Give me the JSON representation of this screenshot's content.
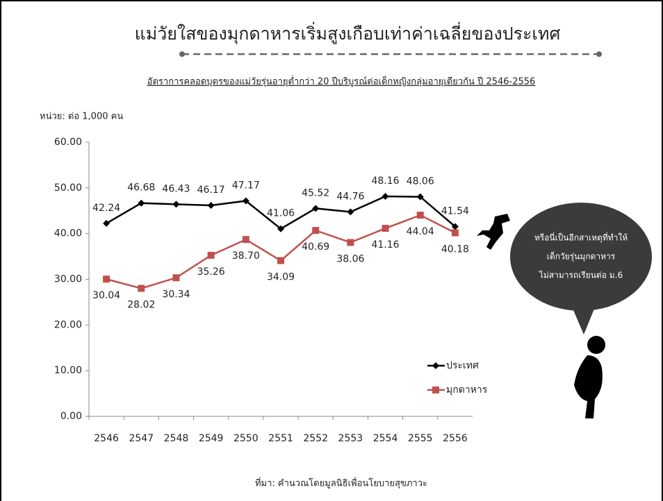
{
  "chart_data": {
    "type": "line",
    "title": "แม่วัยใสของมุกดาหารเริ่มสูงเกือบเท่าค่าเฉลี่ยของประเทศ",
    "subtitle": "อัตราการคลอดบุตรของแม่วัยรุ่นอายุต่ำกว่า 20 ปีบริบูรณ์ต่อเด็กหญิงกลุ่มอายุเดียวกัน ปี 2546-2556",
    "y_unit_label": "หน่วย: ต่อ 1,000 คน",
    "source": "ที่มา: คำนวณโดยมูลนิธิเพื่อนโยบายสุขภาวะ",
    "annotation": [
      "หรือนี่เป็นอีกสาเหตุที่ทำให้",
      "เด็กวัยรุ่นมุกดาหาร",
      "ไม่สามารถเรียนต่อ  ม.6"
    ],
    "categories": [
      "2546",
      "2547",
      "2548",
      "2549",
      "2550",
      "2551",
      "2552",
      "2553",
      "2554",
      "2555",
      "2556"
    ],
    "series": [
      {
        "name": "ประเทศ",
        "color": "#000000",
        "marker": "diamond",
        "values": [
          42.24,
          46.68,
          46.43,
          46.17,
          47.17,
          41.06,
          45.52,
          44.76,
          48.16,
          48.06,
          41.54
        ],
        "value_labels": [
          "42.24",
          "46.68",
          "46.43",
          "46.17",
          "47.17",
          "41.06",
          "45.52",
          "44.76",
          "48.16",
          "48.06",
          "41.54"
        ]
      },
      {
        "name": "มุกดาหาร",
        "color": "#c0504d",
        "marker": "square",
        "values": [
          30.04,
          28.02,
          30.34,
          35.26,
          38.7,
          34.09,
          40.69,
          38.06,
          41.16,
          44.04,
          40.18
        ],
        "value_labels": [
          "30.04",
          "28.02",
          "30.34",
          "35.26",
          "38.70",
          "34.09",
          "40.69",
          "38.06",
          "41.16",
          "44.04",
          "40.18"
        ]
      }
    ],
    "ylim": [
      0,
      60
    ],
    "yticks": [
      {
        "value": 0,
        "label": "0.00"
      },
      {
        "value": 10,
        "label": "10.00"
      },
      {
        "value": 20,
        "label": "20.00"
      },
      {
        "value": 30,
        "label": "30.00"
      },
      {
        "value": 40,
        "label": "40.00"
      },
      {
        "value": 50,
        "label": "50.00"
      },
      {
        "value": 60,
        "label": "60.00"
      }
    ],
    "grid": false,
    "legend": "lower-right"
  }
}
